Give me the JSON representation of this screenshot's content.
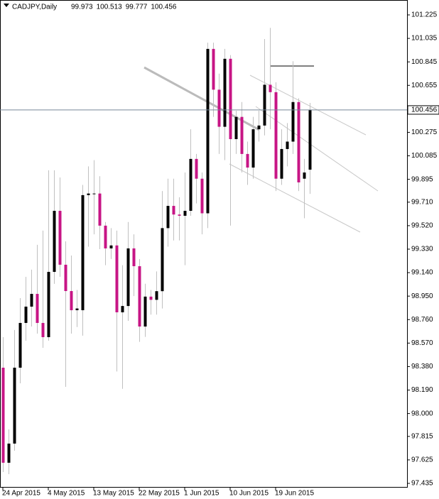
{
  "chart_data": {
    "type": "candlestick",
    "title": "CADJPY,Daily",
    "header_values": [
      99.973,
      100.513,
      99.777,
      100.456
    ],
    "current_price": 100.456,
    "categories": [
      "24 Apr 2015",
      null,
      null,
      null,
      null,
      null,
      null,
      null,
      "4 May 2015",
      null,
      null,
      null,
      null,
      null,
      null,
      null,
      "13 May 2015",
      null,
      null,
      null,
      null,
      null,
      null,
      null,
      "22 May 2015",
      null,
      null,
      null,
      null,
      null,
      null,
      null,
      "1 Jun 2015",
      null,
      null,
      null,
      null,
      null,
      null,
      null,
      "10 Jun 2015",
      null,
      null,
      null,
      null,
      null,
      null,
      null,
      "19 Jun 2015",
      null,
      null,
      null,
      null,
      null,
      null
    ],
    "open": [
      98.371,
      97.602,
      97.757,
      98.371,
      98.733,
      98.865,
      98.968,
      98.733,
      98.618,
      99.146,
      99.64,
      99.204,
      98.991,
      98.836,
      98.836,
      99.767,
      99.78,
      99.78,
      99.52,
      99.336,
      99.36,
      98.819,
      98.87,
      99.336,
      99.192,
      98.704,
      98.946,
      98.92,
      98.99,
      99.5,
      99.68,
      99.61,
      99.6,
      99.64,
      100.06,
      99.9,
      99.62,
      100.95,
      100.62,
      100.32,
      100.87,
      100.22,
      100.4,
      100.1,
      99.99,
      100.3,
      100.33,
      100.66,
      100.6,
      99.9,
      100.14,
      100.2,
      100.52,
      99.9,
      99.973
    ],
    "high": [
      98.618,
      97.872,
      98.676,
      98.934,
      99.106,
      99.164,
      99.365,
      99.48,
      99.968,
      99.968,
      99.91,
      99.393,
      99.278,
      99.0,
      99.85,
      100.0,
      100.05,
      99.92,
      99.55,
      99.5,
      99.48,
      99.2,
      99.55,
      99.45,
      99.25,
      99.05,
      99.0,
      99.15,
      99.8,
      99.9,
      99.9,
      99.75,
      99.95,
      100.3,
      100.1,
      99.95,
      101.0,
      101.0,
      100.75,
      100.95,
      100.9,
      100.45,
      100.52,
      100.2,
      100.4,
      100.45,
      101.03,
      101.12,
      100.68,
      100.3,
      100.35,
      100.85,
      100.55,
      100.06,
      100.513
    ],
    "low": [
      97.527,
      97.51,
      97.699,
      98.245,
      98.589,
      98.704,
      98.647,
      98.532,
      98.589,
      99.049,
      99.106,
      98.216,
      98.647,
      98.7,
      98.63,
      99.35,
      99.45,
      99.33,
      99.2,
      99.25,
      98.34,
      98.2,
      98.75,
      98.95,
      98.58,
      98.62,
      98.8,
      98.8,
      98.85,
      99.35,
      99.4,
      99.4,
      99.2,
      99.6,
      99.7,
      99.45,
      99.5,
      100.4,
      100.1,
      100.05,
      99.52,
      100.1,
      99.95,
      99.85,
      99.9,
      100.2,
      100.25,
      100.3,
      99.8,
      99.85,
      100.0,
      100.1,
      99.8,
      99.58,
      99.777
    ],
    "close": [
      97.602,
      97.757,
      98.371,
      98.733,
      98.865,
      98.968,
      98.733,
      98.618,
      99.146,
      99.64,
      99.204,
      98.991,
      98.836,
      98.85,
      99.767,
      99.78,
      99.78,
      99.52,
      99.336,
      99.36,
      98.819,
      98.87,
      99.336,
      99.192,
      98.704,
      98.946,
      98.92,
      98.99,
      99.5,
      99.68,
      99.61,
      99.6,
      99.64,
      100.06,
      99.9,
      99.62,
      100.95,
      100.62,
      100.32,
      100.87,
      100.22,
      100.4,
      100.1,
      99.99,
      100.3,
      100.33,
      100.66,
      100.6,
      99.9,
      100.14,
      100.2,
      100.52,
      99.87,
      99.95,
      100.456
    ],
    "up_color": "#000000",
    "down_color": "#c71585",
    "ylim": [
      97.435,
      101.225
    ],
    "yticks": [
      101.225,
      101.035,
      100.845,
      100.655,
      100.275,
      100.085,
      99.895,
      {
        "value": 99.71,
        "label": "99.710"
      },
      {
        "value": 99.52,
        "label": "99.520"
      },
      {
        "value": 99.33,
        "label": "99.330"
      },
      {
        "value": 99.14,
        "label": "99.140"
      },
      {
        "value": 98.95,
        "label": "98.950"
      },
      {
        "value": 98.76,
        "label": "98.760"
      },
      {
        "value": 98.57,
        "label": "98.570"
      },
      {
        "value": 98.38,
        "label": "98.380"
      },
      {
        "value": 98.19,
        "label": "98.190"
      },
      {
        "value": 98,
        "label": "98.000"
      },
      97.815,
      97.625,
      97.435
    ]
  }
}
